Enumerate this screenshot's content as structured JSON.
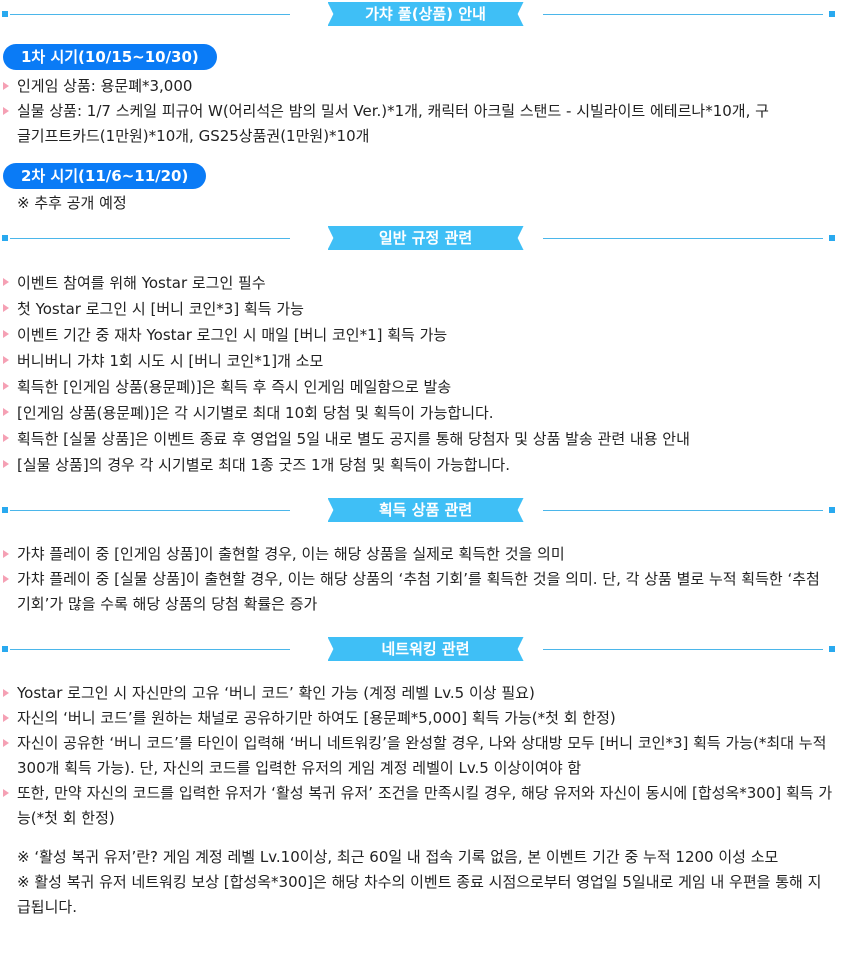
{
  "sections": [
    {
      "title": "가챠 풀(상품) 안내"
    },
    {
      "title": "일반 규정 관련"
    },
    {
      "title": "획득 상품 관련"
    },
    {
      "title": "네트워킹 관련"
    }
  ],
  "prize": {
    "period1": "1차 시기(10/15~10/30)",
    "period1_items": [
      "인게임 상품: 용문폐*3,000",
      "실물 상품: 1/7 스케일 피규어 W(어리석은 밤의 밀서 Ver.)*1개, 캐릭터 아크릴 스탠드 - 시빌라이트 에테르나*10개, 구글기프트카드(1만원)*10개, GS25상품권(1만원)*10개"
    ],
    "period2": "2차 시기(11/6~11/20)",
    "period2_note": "※ 추후 공개 예정"
  },
  "general": [
    "이벤트 참여를 위해 Yostar 로그인 필수",
    "첫 Yostar 로그인 시 [버니 코인*3] 획득 가능",
    "이벤트 기간 중 재차 Yostar 로그인 시 매일 [버니 코인*1] 획득 가능",
    "버니버니 가챠 1회 시도 시 [버니 코인*1]개 소모",
    "획득한 [인게임 상품(용문폐)]은 획득 후 즉시 인게임 메일함으로 발송",
    "[인게임 상품(용문폐)]은 각 시기별로 최대 10회 당첨 및 획득이 가능합니다.",
    "획득한 [실물 상품]은 이벤트 종료 후 영업일 5일 내로 별도 공지를 통해 당첨자 및 상품 발송 관련 내용 안내",
    "[실물 상품]의 경우 각 시기별로 최대 1종 굿즈 1개 당첨 및 획득이 가능합니다."
  ],
  "acquire": [
    "가챠 플레이 중 [인게임 상품]이 출현할 경우, 이는 해당 상품을 실제로 획득한 것을 의미",
    "가챠 플레이 중 [실물 상품]이 출현할 경우, 이는 해당 상품의 ‘추첨 기회’를 획득한 것을 의미. 단, 각 상품 별로 누적 획득한 ‘추첨 기회’가 많을 수록 해당 상품의 당첨 확률은 증가"
  ],
  "networking": [
    "Yostar 로그인 시 자신만의 고유 ‘버니 코드’ 확인 가능 (계정 레벨 Lv.5 이상 필요)",
    "자신의 ‘버니 코드’를 원하는 채널로 공유하기만 하여도 [용문폐*5,000] 획득 가능(*첫 회 한정)",
    "자신이 공유한 ‘버니 코드’를 타인이 입력해 ‘버니 네트워킹’을 완성할 경우, 나와 상대방 모두 [버니 코인*3] 획득 가능(*최대 누적 300개 획득 가능). 단, 자신의 코드를 입력한 유저의 게임 계정 레벨이 Lv.5 이상이여야 함",
    "또한, 만약 자신의 코드를 입력한 유저가 ‘활성 복귀 유저’ 조건을 만족시킬 경우, 해당 유저와 자신이 동시에 [합성옥*300] 획득 가능(*첫 회 한정)"
  ],
  "networking_notes": [
    "※ ‘활성 복귀 유저’란? 게임 계정 레벨 Lv.10이상, 최근 60일 내 접속 기록 없음, 본 이벤트 기간 중 누적 1200 이성 소모",
    "※ 활성 복귀 유저 네트워킹 보상 [합성옥*300]은 해당 차수의 이벤트 종료 시점으로부터 영업일 5일내로 게임 내 우편을 통해 지급됩니다."
  ],
  "colors": {
    "banner": "#3fbff6",
    "pill": "#0a7bf6",
    "bullet": "#f5a0b4",
    "line": "#4bb6ea"
  }
}
